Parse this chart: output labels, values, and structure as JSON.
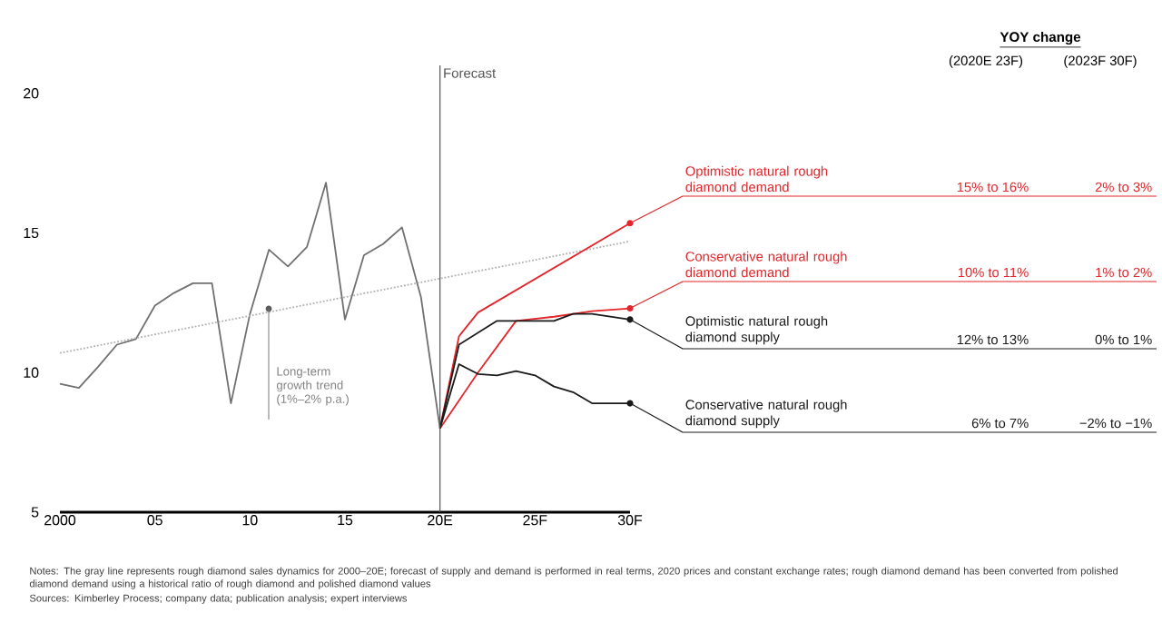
{
  "chart_data": {
    "type": "line",
    "categories": [
      "2000",
      null,
      null,
      null,
      null,
      "05",
      null,
      null,
      null,
      null,
      "10",
      null,
      null,
      null,
      null,
      "15",
      null,
      null,
      null,
      null,
      "20E",
      null,
      null,
      null,
      null,
      "25F",
      null,
      null,
      null,
      null,
      "30F"
    ],
    "ylim": [
      5,
      21
    ],
    "yticks": [
      5,
      10,
      15,
      20
    ],
    "series": [
      {
        "color": "#707070",
        "values": [
          9.6,
          9.45,
          10.2,
          11.0,
          11.2,
          12.4,
          12.85,
          13.2,
          13.2,
          8.9,
          12.1,
          14.4,
          13.8,
          14.5,
          16.8,
          11.9,
          14.2,
          14.6,
          15.2,
          12.7,
          8.0,
          null,
          null,
          null,
          null,
          null,
          null,
          null,
          null,
          null,
          null
        ]
      },
      {
        "color": "#b0b0b0",
        "line_style": "dotted",
        "values": [
          10.7,
          null,
          null,
          null,
          null,
          null,
          null,
          null,
          null,
          null,
          null,
          null,
          null,
          null,
          null,
          null,
          null,
          null,
          null,
          null,
          null,
          null,
          null,
          null,
          null,
          null,
          null,
          null,
          null,
          null,
          14.7
        ]
      },
      {
        "name": "Optimistic natural rough diamond demand",
        "color": "#e2262b",
        "values": [
          null,
          null,
          null,
          null,
          null,
          null,
          null,
          null,
          null,
          null,
          null,
          null,
          null,
          null,
          null,
          null,
          null,
          null,
          null,
          null,
          8.0,
          11.3,
          12.15,
          null,
          null,
          null,
          null,
          null,
          null,
          null,
          15.35
        ]
      },
      {
        "name": "Conservative natural rough diamond demand",
        "color": "#e2262b",
        "values": [
          null,
          null,
          null,
          null,
          null,
          null,
          null,
          null,
          null,
          null,
          null,
          null,
          null,
          null,
          null,
          null,
          null,
          null,
          null,
          null,
          8.0,
          null,
          10.0,
          null,
          11.85,
          null,
          12.0,
          null,
          12.2,
          null,
          12.3
        ]
      },
      {
        "name": "Optimistic natural rough diamond supply",
        "color": "#1a1a1a",
        "values": [
          null,
          null,
          null,
          null,
          null,
          null,
          null,
          null,
          null,
          null,
          null,
          null,
          null,
          null,
          null,
          null,
          null,
          null,
          null,
          null,
          8.0,
          11.0,
          null,
          11.85,
          null,
          null,
          11.85,
          12.1,
          12.1,
          null,
          11.9
        ]
      },
      {
        "name": "Conservative natural rough diamond supply",
        "color": "#1a1a1a",
        "values": [
          null,
          null,
          null,
          null,
          null,
          null,
          null,
          null,
          null,
          null,
          null,
          null,
          null,
          null,
          null,
          null,
          null,
          null,
          null,
          null,
          8.0,
          10.3,
          9.95,
          9.9,
          10.05,
          9.9,
          9.5,
          9.3,
          8.9,
          null,
          8.9
        ]
      }
    ],
    "ref_lines": [
      {
        "axis": "x",
        "value": "20E",
        "label": "Forecast",
        "color": "#555555"
      }
    ],
    "annotations": [
      "Long-term growth trend (1%–2% p.a.)",
      "YOY change",
      "(2020E 23F)",
      "(2023F 30F)",
      "15% to 16%",
      "2% to 3%",
      "10% to 11%",
      "1% to 2%",
      "12% to 13%",
      "0% to 1%",
      "6% to 7%",
      "−2% to −1%",
      "Notes: The gray line represents rough diamond sales dynamics for 2000–20E; forecast of supply and demand is performed in real terms, 2020 prices and constant exchange rates; rough diamond demand has been converted from polished diamond demand using a historical ratio of rough diamond and polished diamond values",
      "Sources: Kimberley Process; company data; publication analysis; expert interviews"
    ]
  }
}
